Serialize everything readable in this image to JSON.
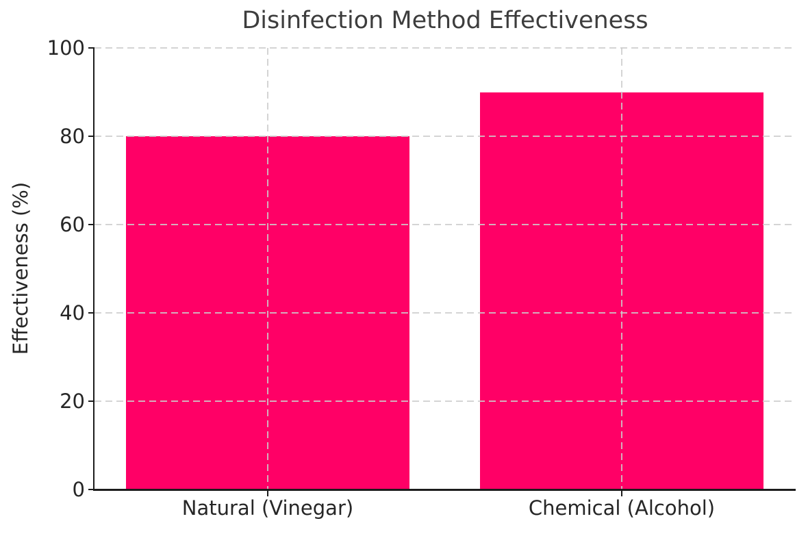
{
  "chart_data": {
    "type": "bar",
    "title": "Disinfection Method Effectiveness",
    "ylabel": "Effectiveness (%)",
    "xlabel": "",
    "categories": [
      "Natural (Vinegar)",
      "Chemical (Alcohol)"
    ],
    "values": [
      80,
      90
    ],
    "ylim": [
      0,
      100
    ],
    "yticks": [
      0,
      20,
      40,
      60,
      80,
      100
    ],
    "bar_color": "#ff0066",
    "grid": {
      "visible": true,
      "line_style": "dashed",
      "color": "#cccccc",
      "drawn_over_bars": true
    },
    "text_color": "#262626",
    "title_color": "#3d3d3d",
    "spine_color": "#1c1c1c",
    "background_color": "#ffffff",
    "legend_position": "none"
  }
}
